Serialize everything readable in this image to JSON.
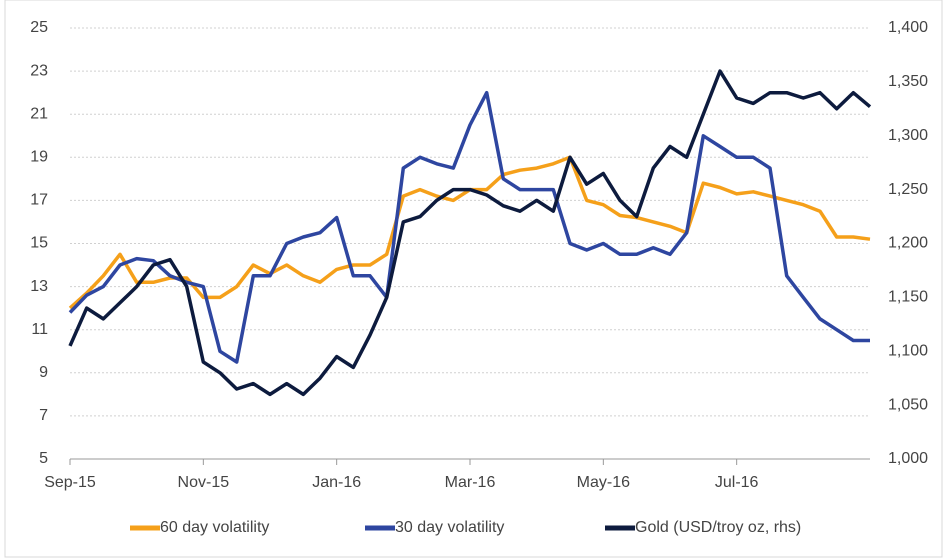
{
  "chart_data": {
    "type": "line",
    "categories": [
      "Sep-15",
      null,
      null,
      null,
      null,
      null,
      null,
      null,
      "Nov-15",
      null,
      null,
      null,
      null,
      null,
      null,
      null,
      "Jan-16",
      null,
      null,
      null,
      null,
      null,
      null,
      null,
      "Mar-16",
      null,
      null,
      null,
      null,
      null,
      null,
      null,
      "May-16",
      null,
      null,
      null,
      null,
      null,
      null,
      null,
      "Jul-16",
      null,
      null,
      null,
      null,
      null,
      null,
      null,
      null
    ],
    "series": [
      {
        "name": "60 day volatility",
        "color": "#f5a01a",
        "values": [
          12,
          12.7,
          13.5,
          14.5,
          13.2,
          13.2,
          13.4,
          13.4,
          12.5,
          12.5,
          13,
          14,
          13.6,
          14,
          13.5,
          13.2,
          13.8,
          14,
          14,
          14.5,
          17.2,
          17.5,
          17.2,
          17,
          17.5,
          17.5,
          18.2,
          18.4,
          18.5,
          18.7,
          19,
          17,
          16.8,
          16.3,
          16.2,
          16,
          15.8,
          15.5,
          17.8,
          17.6,
          17.3,
          17.4,
          17.2,
          17,
          16.8,
          16.5,
          15.3,
          15.3,
          15.2
        ]
      },
      {
        "name": "30 day volatility",
        "color": "#2e46a0",
        "values": [
          11.8,
          12.6,
          13,
          14,
          14.3,
          14.2,
          13.5,
          13.2,
          13,
          10,
          9.5,
          13.5,
          13.5,
          15,
          15.3,
          15.5,
          16.2,
          13.5,
          13.5,
          12.5,
          18.5,
          19,
          18.7,
          18.5,
          20.5,
          22,
          18,
          17.5,
          17.5,
          17.5,
          15,
          14.7,
          15,
          14.5,
          14.5,
          14.8,
          14.5,
          15.5,
          20,
          19.5,
          19,
          19,
          18.5,
          13.5,
          12.5,
          11.5,
          11,
          10.5,
          10.5
        ]
      },
      {
        "name": "Gold (USD/troy oz, rhs)",
        "color": "#0d1b3e",
        "axis": "y2",
        "values": [
          1105,
          1140,
          1130,
          1145,
          1160,
          1180,
          1185,
          1160,
          1090,
          1080,
          1065,
          1070,
          1060,
          1070,
          1060,
          1075,
          1095,
          1085,
          1115,
          1150,
          1220,
          1225,
          1240,
          1250,
          1250,
          1245,
          1235,
          1230,
          1240,
          1230,
          1280,
          1255,
          1265,
          1240,
          1225,
          1270,
          1290,
          1280,
          1320,
          1360,
          1335,
          1330,
          1340,
          1340,
          1335,
          1340,
          1325,
          1340,
          1327
        ]
      }
    ],
    "ylim": [
      5,
      25
    ],
    "yticks": [
      5,
      7,
      9,
      11,
      13,
      15,
      17,
      19,
      21,
      23,
      25
    ],
    "y2lim": [
      1000,
      1400
    ],
    "y2ticks": [
      {
        "value": 1000,
        "label": "1,000"
      },
      {
        "value": 1050,
        "label": "1,050"
      },
      {
        "value": 1100,
        "label": "1,100"
      },
      {
        "value": 1150,
        "label": "1,150"
      },
      {
        "value": 1200,
        "label": "1,200"
      },
      {
        "value": 1250,
        "label": "1,250"
      },
      {
        "value": 1300,
        "label": "1,300"
      },
      {
        "value": 1350,
        "label": "1,350"
      },
      {
        "value": 1400,
        "label": "1,400"
      }
    ],
    "grid": true,
    "legend": "bottom"
  }
}
